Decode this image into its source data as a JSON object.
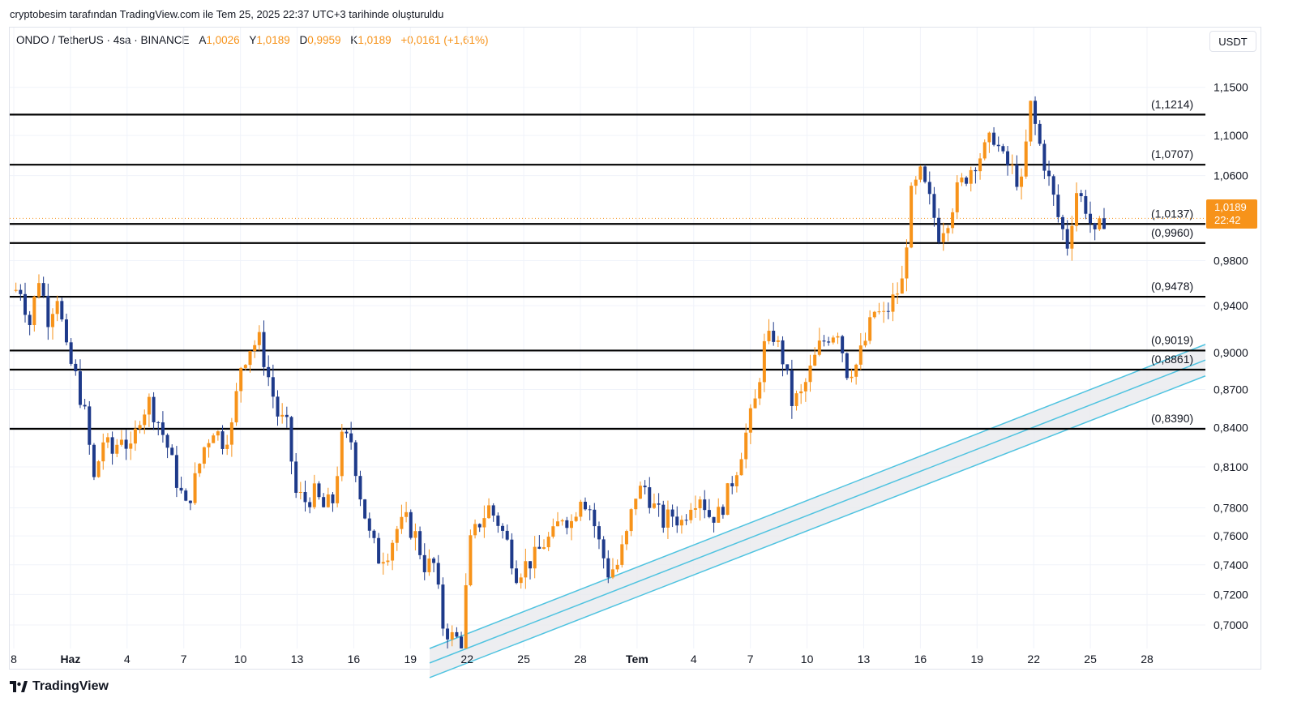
{
  "header": {
    "attribution": "cryptobesim tarafından TradingView.com ile Tem 25, 2025 22:37 UTC+3 tarihinde oluşturuldu"
  },
  "legend": {
    "symbol": "ONDO / TetherUS · 4sa · BINANCE",
    "open_label": "A",
    "open_value": "1,0026",
    "high_label": "Y",
    "high_value": "1,0189",
    "low_label": "D",
    "low_value": "0,9959",
    "close_label": "K",
    "close_value": "1,0189",
    "change": "+0,0161 (+1,61%)"
  },
  "currency_button": "USDT",
  "last_price": {
    "value": "1,0189",
    "countdown": "22:42"
  },
  "brand": "TradingView",
  "colors": {
    "up": "#f7931a",
    "down": "#1e3a8a",
    "channel": "#4fc3e0",
    "channel_fill": "#e8eaed",
    "level": "#000000"
  },
  "chart_data": {
    "type": "candlestick",
    "scale": "log",
    "timeframe": "4sa",
    "x_tick_labels": [
      "8",
      "Haz",
      "4",
      "7",
      "10",
      "13",
      "16",
      "19",
      "22",
      "25",
      "28",
      "Tem",
      "4",
      "7",
      "10",
      "13",
      "16",
      "19",
      "22",
      "25",
      "28"
    ],
    "y_tick_labels": [
      "1,1500",
      "1,1000",
      "1,0600",
      "0,9800",
      "0,9400",
      "0,9000",
      "0,8700",
      "0,8400",
      "0,8100",
      "0,7800",
      "0,7600",
      "0,7400",
      "0,7200",
      "0,7000"
    ],
    "y_ticks": [
      1.15,
      1.1,
      1.06,
      0.98,
      0.94,
      0.9,
      0.87,
      0.84,
      0.81,
      0.78,
      0.76,
      0.74,
      0.72,
      0.7
    ],
    "ylim": [
      0.685,
      1.19
    ],
    "horizontal_levels": [
      {
        "value": 1.1214,
        "label": "(1,1214)"
      },
      {
        "value": 1.0707,
        "label": "(1,0707)"
      },
      {
        "value": 1.0137,
        "label": "(1,0137)"
      },
      {
        "value": 0.996,
        "label": "(0,9960)"
      },
      {
        "value": 0.9478,
        "label": "(0,9478)"
      },
      {
        "value": 0.9019,
        "label": "(0,9019)"
      },
      {
        "value": 0.8861,
        "label": "(0,8861)"
      },
      {
        "value": 0.839,
        "label": "(0,8390)"
      }
    ],
    "last_price_value": 1.0189,
    "price_path": [
      [
        0,
        0.953
      ],
      [
        2,
        0.955
      ],
      [
        4,
        0.925
      ],
      [
        6,
        0.965
      ],
      [
        8,
        0.93
      ],
      [
        10,
        0.95
      ],
      [
        12,
        0.9
      ],
      [
        14,
        0.88
      ],
      [
        16,
        0.85
      ],
      [
        18,
        0.8
      ],
      [
        20,
        0.83
      ],
      [
        22,
        0.82
      ],
      [
        24,
        0.835
      ],
      [
        26,
        0.82
      ],
      [
        28,
        0.85
      ],
      [
        30,
        0.86
      ],
      [
        32,
        0.845
      ],
      [
        34,
        0.825
      ],
      [
        36,
        0.8
      ],
      [
        38,
        0.78
      ],
      [
        40,
        0.8
      ],
      [
        42,
        0.825
      ],
      [
        44,
        0.84
      ],
      [
        46,
        0.83
      ],
      [
        48,
        0.84
      ],
      [
        50,
        0.89
      ],
      [
        52,
        0.905
      ],
      [
        54,
        0.91
      ],
      [
        56,
        0.88
      ],
      [
        58,
        0.85
      ],
      [
        60,
        0.84
      ],
      [
        62,
        0.79
      ],
      [
        64,
        0.785
      ],
      [
        66,
        0.79
      ],
      [
        68,
        0.78
      ],
      [
        70,
        0.785
      ],
      [
        72,
        0.83
      ],
      [
        74,
        0.83
      ],
      [
        76,
        0.79
      ],
      [
        78,
        0.76
      ],
      [
        80,
        0.745
      ],
      [
        82,
        0.75
      ],
      [
        84,
        0.765
      ],
      [
        86,
        0.77
      ],
      [
        88,
        0.76
      ],
      [
        90,
        0.74
      ],
      [
        92,
        0.74
      ],
      [
        94,
        0.7
      ],
      [
        96,
        0.692
      ],
      [
        98,
        0.69
      ],
      [
        100,
        0.755
      ],
      [
        102,
        0.77
      ],
      [
        104,
        0.78
      ],
      [
        106,
        0.77
      ],
      [
        108,
        0.755
      ],
      [
        110,
        0.735
      ],
      [
        112,
        0.74
      ],
      [
        114,
        0.745
      ],
      [
        116,
        0.755
      ],
      [
        118,
        0.76
      ],
      [
        120,
        0.775
      ],
      [
        122,
        0.77
      ],
      [
        124,
        0.79
      ],
      [
        126,
        0.78
      ],
      [
        128,
        0.755
      ],
      [
        130,
        0.735
      ],
      [
        132,
        0.74
      ],
      [
        134,
        0.76
      ],
      [
        136,
        0.79
      ],
      [
        138,
        0.795
      ],
      [
        140,
        0.78
      ],
      [
        142,
        0.77
      ],
      [
        144,
        0.775
      ],
      [
        146,
        0.77
      ],
      [
        148,
        0.785
      ],
      [
        150,
        0.79
      ],
      [
        152,
        0.775
      ],
      [
        154,
        0.775
      ],
      [
        156,
        0.79
      ],
      [
        158,
        0.81
      ],
      [
        160,
        0.835
      ],
      [
        162,
        0.86
      ],
      [
        164,
        0.905
      ],
      [
        166,
        0.915
      ],
      [
        168,
        0.895
      ],
      [
        170,
        0.86
      ],
      [
        172,
        0.865
      ],
      [
        174,
        0.885
      ],
      [
        176,
        0.905
      ],
      [
        178,
        0.915
      ],
      [
        180,
        0.92
      ],
      [
        182,
        0.885
      ],
      [
        184,
        0.89
      ],
      [
        186,
        0.91
      ],
      [
        188,
        0.935
      ],
      [
        190,
        0.93
      ],
      [
        192,
        0.945
      ],
      [
        194,
        0.96
      ],
      [
        196,
        1.04
      ],
      [
        198,
        1.06
      ],
      [
        200,
        1.035
      ],
      [
        202,
        1.005
      ],
      [
        204,
        1.02
      ],
      [
        206,
        1.045
      ],
      [
        208,
        1.06
      ],
      [
        210,
        1.075
      ],
      [
        212,
        1.085
      ],
      [
        214,
        1.1
      ],
      [
        216,
        1.075
      ],
      [
        218,
        1.065
      ],
      [
        220,
        1.05
      ],
      [
        222,
        1.13
      ],
      [
        224,
        1.09
      ],
      [
        226,
        1.055
      ],
      [
        228,
        1.02
      ],
      [
        230,
        0.995
      ],
      [
        232,
        1.045
      ],
      [
        234,
        1.03
      ],
      [
        236,
        1.0
      ],
      [
        238,
        1.0189
      ]
    ]
  }
}
